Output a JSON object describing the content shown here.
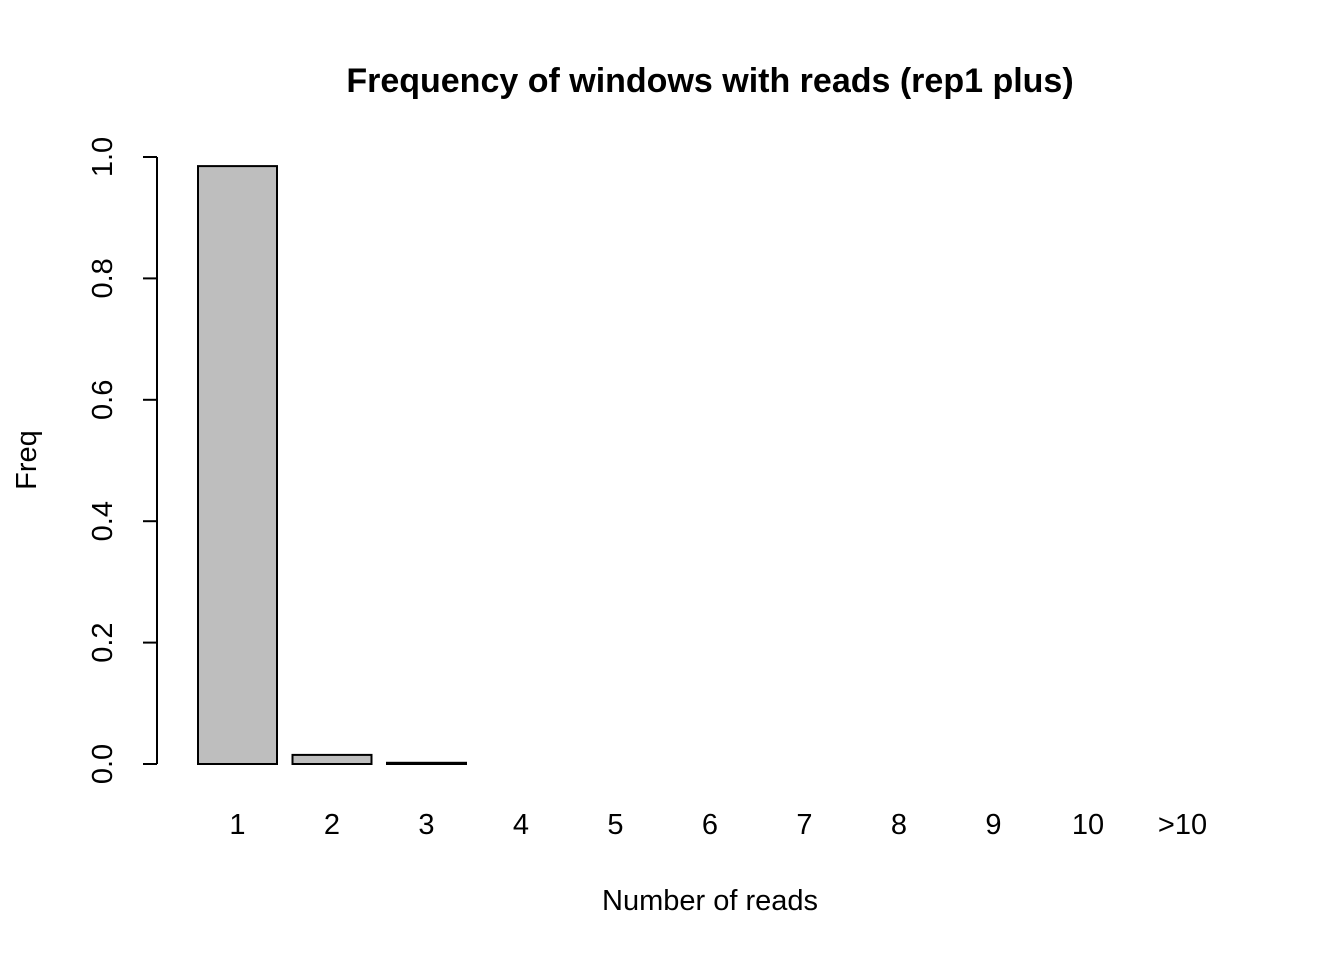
{
  "chart_data": {
    "type": "bar",
    "title": "Frequency of windows with reads (rep1 plus)",
    "xlabel": "Number of reads",
    "ylabel": "Freq",
    "categories": [
      "1",
      "2",
      "3",
      "4",
      "5",
      "6",
      "7",
      "8",
      "9",
      "10",
      ">10"
    ],
    "values": [
      0.985,
      0.015,
      0.002,
      0.0,
      0.0,
      0.0,
      0.0,
      0.0,
      0.0,
      0.0,
      0.0
    ],
    "ylim": [
      0,
      1.0
    ],
    "yticks": [
      "0.0",
      "0.2",
      "0.4",
      "0.6",
      "0.8",
      "1.0"
    ],
    "grid": false,
    "bar_color": "#bebebe",
    "border_color": "#000000"
  }
}
